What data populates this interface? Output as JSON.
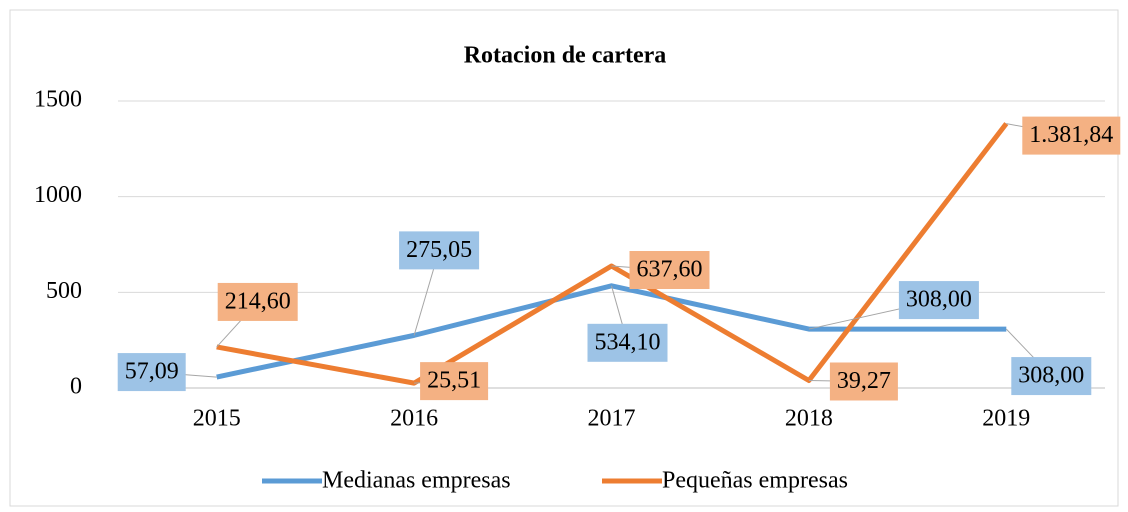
{
  "chart_data": {
    "type": "line",
    "title": "Rotacion de cartera",
    "categories": [
      "2015",
      "2016",
      "2017",
      "2018",
      "2019"
    ],
    "series": [
      {
        "name": "Medianas empresas",
        "color": "#5b9bd5",
        "label_color": "#9dc3e6",
        "values": [
          57.09,
          275.05,
          534.1,
          308.0,
          308.0
        ],
        "value_labels": [
          "57,09",
          "275,05",
          "534,10",
          "308,00",
          "308,00"
        ]
      },
      {
        "name": "Pequeñas empresas",
        "color": "#ed7d31",
        "label_color": "#f4b183",
        "values": [
          214.6,
          25.51,
          637.6,
          39.27,
          1381.84
        ],
        "value_labels": [
          "214,60",
          "25,51",
          "637,60",
          "39,27",
          "1.381,84"
        ]
      }
    ],
    "ylim": [
      0,
      1500
    ],
    "yticks": [
      0,
      500,
      1000,
      1500
    ],
    "grid": true,
    "legend": "bottom"
  }
}
